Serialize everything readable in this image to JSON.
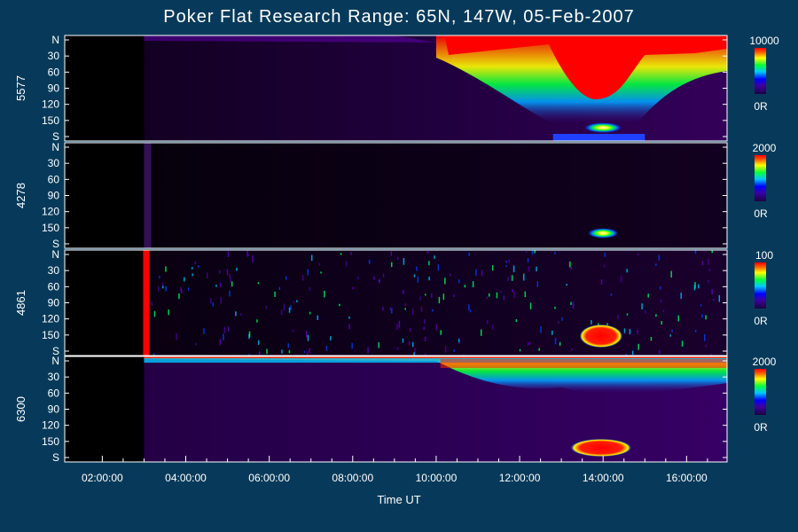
{
  "chart_data": {
    "type": "heatmap",
    "title": "Poker Flat Research Range: 65N, 147W, 05-Feb-2007",
    "xlabel": "Time UT",
    "x_ticks": [
      "02:00:00",
      "04:00:00",
      "06:00:00",
      "08:00:00",
      "10:00:00",
      "12:00:00",
      "14:00:00",
      "16:00:00"
    ],
    "x_range_hours": [
      1.1,
      16.97
    ],
    "y_ticks": [
      "N",
      "30",
      "60",
      "90",
      "120",
      "150",
      "S"
    ],
    "y_range_deg": [
      0,
      180
    ],
    "panels": [
      {
        "name": "5577",
        "scale_max": "10000",
        "scale_min": "0R",
        "features": [
          {
            "t_start": 3.0,
            "t_end": 10.0,
            "level": 0.08
          },
          {
            "t_start": 10.0,
            "t_end": 12.7,
            "level": 0.55
          },
          {
            "t_start": 12.7,
            "t_end": 14.8,
            "level": 0.95
          },
          {
            "t_start": 14.8,
            "t_end": 16.97,
            "level": 0.6
          }
        ]
      },
      {
        "name": "4278",
        "scale_max": "2000",
        "scale_min": "0R",
        "features": [
          {
            "t_start": 13.5,
            "t_end": 14.5,
            "level": 0.7
          }
        ]
      },
      {
        "name": "4861",
        "scale_max": "100",
        "scale_min": "0R",
        "features": [
          {
            "t_start": 13.3,
            "t_end": 14.4,
            "level": 0.85
          }
        ]
      },
      {
        "name": "6300",
        "scale_max": "2000",
        "scale_min": "0R",
        "features": [
          {
            "t_start": 3.0,
            "t_end": 10.0,
            "level": 0.3
          },
          {
            "t_start": 10.0,
            "t_end": 16.97,
            "level": 0.7
          },
          {
            "t_start": 13.4,
            "t_end": 14.5,
            "level": 0.95
          }
        ]
      }
    ],
    "colorscale": [
      "#000000",
      "#2a0048",
      "#4b0082",
      "#0000ff",
      "#00ffff",
      "#00ff00",
      "#ffff00",
      "#ff0000"
    ]
  }
}
